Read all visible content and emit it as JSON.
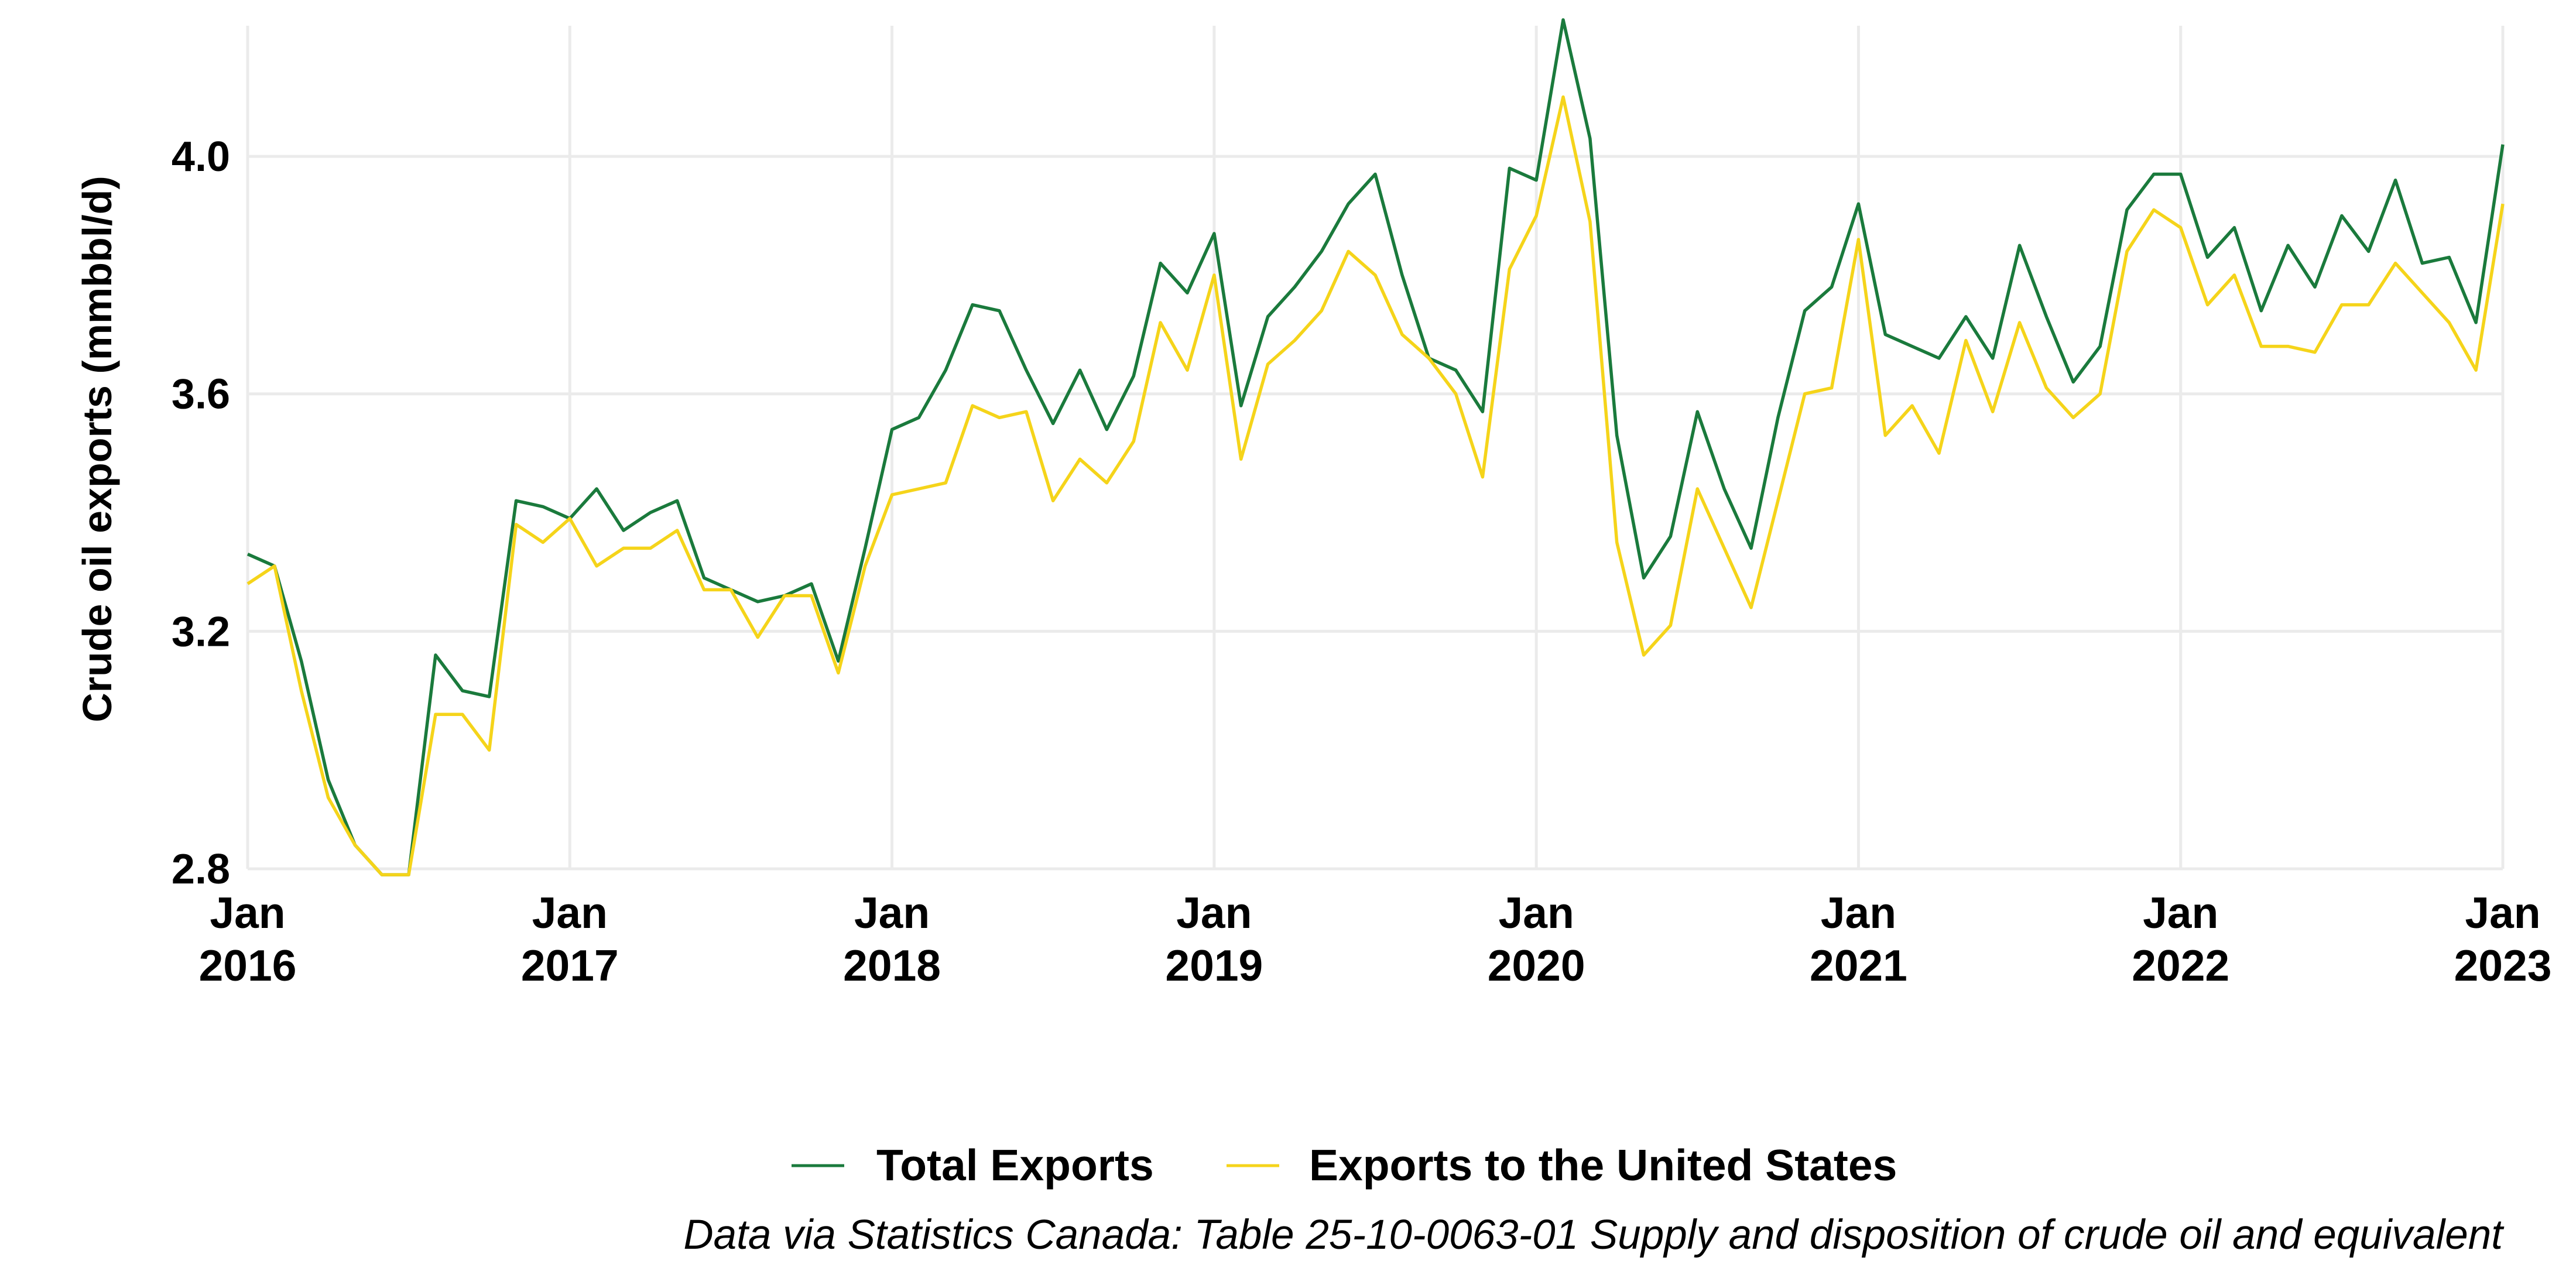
{
  "chart_data": {
    "type": "line",
    "title": "",
    "xlabel": "",
    "ylabel": "Crude oil exports (mmbbl/d)",
    "x_start": "2016-01",
    "x_end": "2023-01",
    "x_ticks": [
      {
        "month": "2016-01",
        "line1": "Jan",
        "line2": "2016"
      },
      {
        "month": "2017-01",
        "line1": "Jan",
        "line2": "2017"
      },
      {
        "month": "2018-01",
        "line1": "Jan",
        "line2": "2018"
      },
      {
        "month": "2019-01",
        "line1": "Jan",
        "line2": "2019"
      },
      {
        "month": "2020-01",
        "line1": "Jan",
        "line2": "2020"
      },
      {
        "month": "2021-01",
        "line1": "Jan",
        "line2": "2021"
      },
      {
        "month": "2022-01",
        "line1": "Jan",
        "line2": "2022"
      },
      {
        "month": "2023-01",
        "line1": "Jan",
        "line2": "2023"
      }
    ],
    "y_ticks": [
      "2.8",
      "3.2",
      "3.6",
      "4.0"
    ],
    "ylim": [
      2.8,
      4.22
    ],
    "grid": true,
    "legend_position": "bottom",
    "series": [
      {
        "name": "Total Exports",
        "color": "#1a7a3c",
        "values": [
          3.33,
          3.31,
          3.15,
          2.95,
          2.84,
          2.79,
          2.79,
          3.16,
          3.1,
          3.09,
          3.42,
          3.41,
          3.39,
          3.44,
          3.37,
          3.4,
          3.42,
          3.29,
          3.27,
          3.25,
          3.26,
          3.28,
          3.15,
          3.34,
          3.54,
          3.56,
          3.64,
          3.75,
          3.74,
          3.64,
          3.55,
          3.64,
          3.54,
          3.63,
          3.82,
          3.77,
          3.87,
          3.58,
          3.73,
          3.78,
          3.84,
          3.92,
          3.97,
          3.8,
          3.66,
          3.64,
          3.57,
          3.98,
          3.96,
          4.23,
          4.03,
          3.53,
          3.29,
          3.36,
          3.57,
          3.44,
          3.34,
          3.56,
          3.74,
          3.78,
          3.92,
          3.7,
          3.68,
          3.66,
          3.73,
          3.66,
          3.85,
          3.73,
          3.62,
          3.68,
          3.91,
          3.97,
          3.97,
          3.83,
          3.88,
          3.74,
          3.85,
          3.78,
          3.9,
          3.84,
          3.96,
          3.82,
          3.83,
          3.72,
          4.02
        ]
      },
      {
        "name": "Exports to the United States",
        "color": "#f5d41a",
        "values": [
          3.28,
          3.31,
          3.1,
          2.92,
          2.84,
          2.79,
          2.79,
          3.06,
          3.06,
          3.0,
          3.38,
          3.35,
          3.39,
          3.31,
          3.34,
          3.34,
          3.37,
          3.27,
          3.27,
          3.19,
          3.26,
          3.26,
          3.13,
          3.31,
          3.43,
          3.44,
          3.45,
          3.58,
          3.56,
          3.57,
          3.42,
          3.49,
          3.45,
          3.52,
          3.72,
          3.64,
          3.8,
          3.49,
          3.65,
          3.69,
          3.74,
          3.84,
          3.8,
          3.7,
          3.66,
          3.6,
          3.46,
          3.81,
          3.9,
          4.1,
          3.89,
          3.35,
          3.16,
          3.21,
          3.44,
          3.34,
          3.24,
          3.42,
          3.6,
          3.61,
          3.86,
          3.53,
          3.58,
          3.5,
          3.69,
          3.57,
          3.72,
          3.61,
          3.56,
          3.6,
          3.84,
          3.91,
          3.88,
          3.75,
          3.8,
          3.68,
          3.68,
          3.67,
          3.75,
          3.75,
          3.82,
          3.77,
          3.72,
          3.64,
          3.92
        ]
      }
    ],
    "caption": "Data via Statistics Canada: Table 25-10-0063-01  Supply and disposition of crude oil and equivalent"
  }
}
